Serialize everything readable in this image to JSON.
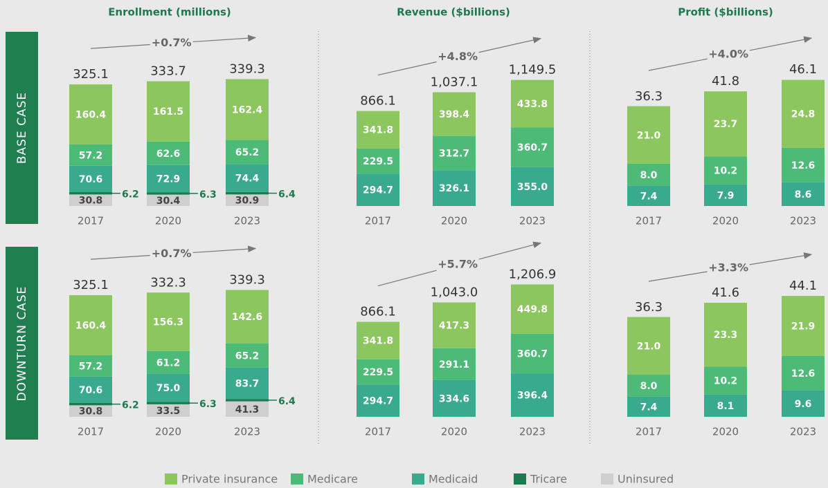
{
  "columns": [
    "Enrollment (millions)",
    "Revenue ($billions)",
    "Profit ($billions)"
  ],
  "rows": [
    "BASE CASE",
    "DOWNTURN CASE"
  ],
  "chart_data": [
    {
      "type": "stacked_bar",
      "categories": [
        "2017",
        "2020",
        "2023"
      ],
      "ylim": [
        0,
        440
      ],
      "cagr": "+0.7%",
      "totals": [
        325.1,
        333.7,
        339.3
      ],
      "total_labels": [
        "325.1",
        "333.7",
        "339.3"
      ],
      "series": [
        {
          "name": "Private insurance",
          "color": "#8cc65e",
          "values": [
            160.4,
            161.5,
            162.4
          ],
          "value_labels": [
            "160.4",
            "161.5",
            "162.4"
          ]
        },
        {
          "name": "Medicare",
          "color": "#4dbb78",
          "values": [
            57.2,
            62.6,
            65.2
          ],
          "value_labels": [
            "57.2",
            "62.6",
            "65.2"
          ]
        },
        {
          "name": "Medicaid",
          "color": "#3aaa8f",
          "values": [
            70.6,
            72.9,
            74.4
          ],
          "value_labels": [
            "70.6",
            "72.9",
            "74.4"
          ]
        },
        {
          "name": "Tricare",
          "color": "#1c7a4f",
          "values": [
            6.2,
            6.3,
            6.4
          ],
          "value_labels": [
            "6.2",
            "6.3",
            "6.4"
          ]
        },
        {
          "name": "Uninsured",
          "color": "#cfcfcf",
          "values": [
            30.8,
            30.4,
            30.9
          ],
          "value_labels": [
            "30.8",
            "30.4",
            "30.9"
          ]
        }
      ]
    },
    {
      "type": "stacked_bar",
      "categories": [
        "2017",
        "2020",
        "2023"
      ],
      "ylim": [
        0,
        1500
      ],
      "cagr": "+4.8%",
      "totals": [
        866.1,
        1037.1,
        1149.5
      ],
      "total_labels": [
        "866.1",
        "1,037.1",
        "1,149.5"
      ],
      "series": [
        {
          "name": "Private insurance",
          "color": "#8cc65e",
          "values": [
            341.8,
            398.4,
            433.8
          ],
          "value_labels": [
            "341.8",
            "398.4",
            "433.8"
          ]
        },
        {
          "name": "Medicare",
          "color": "#4dbb78",
          "values": [
            229.5,
            312.7,
            360.7
          ],
          "value_labels": [
            "229.5",
            "312.7",
            "360.7"
          ]
        },
        {
          "name": "Medicaid",
          "color": "#3aaa8f",
          "values": [
            294.7,
            326.1,
            355.0
          ],
          "value_labels": [
            "294.7",
            "326.1",
            "355.0"
          ]
        }
      ]
    },
    {
      "type": "stacked_bar",
      "categories": [
        "2017",
        "2020",
        "2023"
      ],
      "ylim": [
        0,
        60
      ],
      "cagr": "+4.0%",
      "totals": [
        36.3,
        41.8,
        46.1
      ],
      "total_labels": [
        "36.3",
        "41.8",
        "46.1"
      ],
      "series": [
        {
          "name": "Private insurance",
          "color": "#8cc65e",
          "values": [
            21.0,
            23.7,
            24.8
          ],
          "value_labels": [
            "21.0",
            "23.7",
            "24.8"
          ]
        },
        {
          "name": "Medicare",
          "color": "#4dbb78",
          "values": [
            8.0,
            10.2,
            12.6
          ],
          "value_labels": [
            "8.0",
            "10.2",
            "12.6"
          ]
        },
        {
          "name": "Medicaid",
          "color": "#3aaa8f",
          "values": [
            7.4,
            7.9,
            8.6
          ],
          "value_labels": [
            "7.4",
            "7.9",
            "8.6"
          ]
        }
      ]
    },
    {
      "type": "stacked_bar",
      "categories": [
        "2017",
        "2020",
        "2023"
      ],
      "ylim": [
        0,
        440
      ],
      "cagr": "+0.7%",
      "totals": [
        325.1,
        332.3,
        339.3
      ],
      "total_labels": [
        "325.1",
        "332.3",
        "339.3"
      ],
      "series": [
        {
          "name": "Private insurance",
          "color": "#8cc65e",
          "values": [
            160.4,
            156.3,
            142.6
          ],
          "value_labels": [
            "160.4",
            "156.3",
            "142.6"
          ]
        },
        {
          "name": "Medicare",
          "color": "#4dbb78",
          "values": [
            57.2,
            61.2,
            65.2
          ],
          "value_labels": [
            "57.2",
            "61.2",
            "65.2"
          ]
        },
        {
          "name": "Medicaid",
          "color": "#3aaa8f",
          "values": [
            70.6,
            75.0,
            83.7
          ],
          "value_labels": [
            "70.6",
            "75.0",
            "83.7"
          ]
        },
        {
          "name": "Tricare",
          "color": "#1c7a4f",
          "values": [
            6.2,
            6.3,
            6.4
          ],
          "value_labels": [
            "6.2",
            "6.3",
            "6.4"
          ]
        },
        {
          "name": "Uninsured",
          "color": "#cfcfcf",
          "values": [
            30.8,
            33.5,
            41.3
          ],
          "value_labels": [
            "30.8",
            "33.5",
            "41.3"
          ]
        }
      ]
    },
    {
      "type": "stacked_bar",
      "categories": [
        "2017",
        "2020",
        "2023"
      ],
      "ylim": [
        0,
        1500
      ],
      "cagr": "+5.7%",
      "totals": [
        866.1,
        1043.0,
        1206.9
      ],
      "total_labels": [
        "866.1",
        "1,043.0",
        "1,206.9"
      ],
      "series": [
        {
          "name": "Private insurance",
          "color": "#8cc65e",
          "values": [
            341.8,
            417.3,
            449.8
          ],
          "value_labels": [
            "341.8",
            "417.3",
            "449.8"
          ]
        },
        {
          "name": "Medicare",
          "color": "#4dbb78",
          "values": [
            229.5,
            291.1,
            360.7
          ],
          "value_labels": [
            "229.5",
            "291.1",
            "360.7"
          ]
        },
        {
          "name": "Medicaid",
          "color": "#3aaa8f",
          "values": [
            294.7,
            334.6,
            396.4
          ],
          "value_labels": [
            "294.7",
            "334.6",
            "396.4"
          ]
        }
      ]
    },
    {
      "type": "stacked_bar",
      "categories": [
        "2017",
        "2020",
        "2023"
      ],
      "ylim": [
        0,
        60
      ],
      "cagr": "+3.3%",
      "totals": [
        36.3,
        41.6,
        44.1
      ],
      "total_labels": [
        "36.3",
        "41.6",
        "44.1"
      ],
      "series": [
        {
          "name": "Private insurance",
          "color": "#8cc65e",
          "values": [
            21.0,
            23.3,
            21.9
          ],
          "value_labels": [
            "21.0",
            "23.3",
            "21.9"
          ]
        },
        {
          "name": "Medicare",
          "color": "#4dbb78",
          "values": [
            8.0,
            10.2,
            12.6
          ],
          "value_labels": [
            "8.0",
            "10.2",
            "12.6"
          ]
        },
        {
          "name": "Medicaid",
          "color": "#3aaa8f",
          "values": [
            7.4,
            8.1,
            9.6
          ],
          "value_labels": [
            "7.4",
            "8.1",
            "9.6"
          ]
        }
      ]
    }
  ]
}
